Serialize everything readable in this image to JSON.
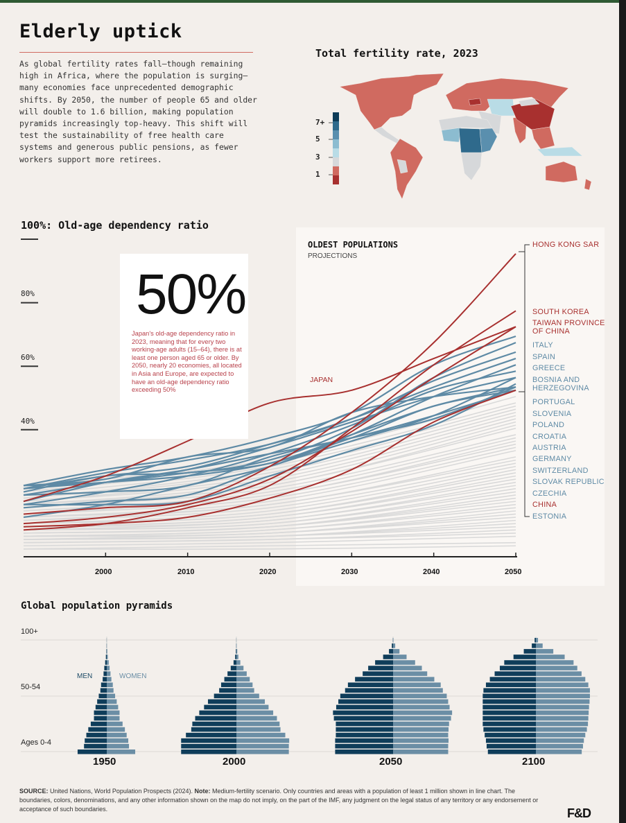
{
  "header": {
    "title": "Elderly uptick",
    "intro": "As global fertility rates fall—though remaining high in Africa, where the population is surging—many economies face unprecedented demographic shifts. By 2050, the number of people 65 and older will double to 1.6 billion, making population pyramids increasingly top-heavy. This shift will test the sustainability of free health care systems and generous public pensions, as fewer workers support more retirees."
  },
  "colors": {
    "background": "#f3efeb",
    "red_line": "#a8302f",
    "blue_line": "#5e8aa5",
    "gray_line": "#d9d9d9",
    "men": "#0f3d5a",
    "women": "#6b8ea5",
    "accent_rule": "#d06a60"
  },
  "chart_data": [
    {
      "type": "choropleth-map",
      "title": "Total fertility rate, 2023",
      "legend": {
        "labels": [
          "7+",
          "5",
          "3",
          "1"
        ],
        "colors": [
          "#0d3b57",
          "#2f6a8c",
          "#5a8fae",
          "#8cbcd0",
          "#b9dce6",
          "#d6d8da",
          "#d06a60",
          "#a8302f"
        ]
      },
      "regions": [
        {
          "region": "North America",
          "color": "#d06a60"
        },
        {
          "region": "Central America & Caribbean",
          "color": "#d6d8da"
        },
        {
          "region": "South America",
          "color": "#d06a60"
        },
        {
          "region": "Bolivia/Paraguay",
          "color": "#d6d8da"
        },
        {
          "region": "Europe & Russia",
          "color": "#d06a60"
        },
        {
          "region": "Ukraine",
          "color": "#a8302f"
        },
        {
          "region": "Central Asia",
          "color": "#b9dce6"
        },
        {
          "region": "Middle East",
          "color": "#d6d8da"
        },
        {
          "region": "North Africa",
          "color": "#d6d8da"
        },
        {
          "region": "West Africa",
          "color": "#8cbcd0"
        },
        {
          "region": "Central Africa",
          "color": "#2f6a8c"
        },
        {
          "region": "East Africa",
          "color": "#5a8fae"
        },
        {
          "region": "Southern Africa",
          "color": "#d6d8da"
        },
        {
          "region": "India",
          "color": "#d06a60"
        },
        {
          "region": "China",
          "color": "#a8302f"
        },
        {
          "region": "Mongolia",
          "color": "#d6d8da"
        },
        {
          "region": "Southeast Asia",
          "color": "#d06a60"
        },
        {
          "region": "Indonesia/PNG",
          "color": "#b9dce6"
        },
        {
          "region": "Australia",
          "color": "#d06a60"
        },
        {
          "region": "New Zealand",
          "color": "#d06a60"
        }
      ]
    },
    {
      "type": "line",
      "title": "100%: Old-age dependency ratio",
      "panel_title": "OLDEST POPULATIONS",
      "panel_subtitle": "PROJECTIONS",
      "xlim": [
        1990,
        2050
      ],
      "ylim": [
        0,
        100
      ],
      "x_ticks": [
        "2000",
        "2010",
        "2020",
        "2030",
        "2040",
        "2050"
      ],
      "y_ticks": [
        "80%",
        "60%",
        "40%"
      ],
      "x": [
        1990,
        2000,
        2010,
        2020,
        2030,
        2040,
        2050
      ],
      "annotation_label": "JAPAN",
      "callout": {
        "value": "50%",
        "text": "Japan's old-age dependency ratio in 2023, meaning that for every two working-age adults (15–64), there is at least one person aged 65 or older. By 2050, nearly 20 economies, all located in Asia and Europe, are expected to have an old-age dependency ratio exceeding 50%"
      },
      "highlighted_series": [
        {
          "name": "HONG KONG SAR",
          "group": "red",
          "values": [
            13,
            15,
            17,
            28,
            45,
            67,
            95
          ]
        },
        {
          "name": "SOUTH KOREA",
          "group": "red",
          "values": [
            8,
            10,
            15,
            22,
            40,
            60,
            77
          ]
        },
        {
          "name": "TAIWAN PROVINCE OF CHINA",
          "group": "red",
          "values": [
            10,
            12,
            16,
            24,
            39,
            56,
            72
          ]
        },
        {
          "name": "ITALY",
          "group": "blue",
          "values": [
            22,
            27,
            31,
            37,
            45,
            60,
            69
          ]
        },
        {
          "name": "SPAIN",
          "group": "blue",
          "values": [
            20,
            25,
            26,
            30,
            40,
            56,
            67
          ]
        },
        {
          "name": "GREECE",
          "group": "blue",
          "values": [
            21,
            26,
            30,
            35,
            43,
            55,
            64
          ]
        },
        {
          "name": "BOSNIA AND HERZEGOVINA",
          "group": "blue",
          "values": [
            12,
            16,
            22,
            28,
            38,
            50,
            60
          ]
        },
        {
          "name": "PORTUGAL",
          "group": "blue",
          "values": [
            21,
            25,
            28,
            35,
            43,
            53,
            62
          ]
        },
        {
          "name": "SLOVENIA",
          "group": "blue",
          "values": [
            16,
            20,
            25,
            32,
            41,
            52,
            58
          ]
        },
        {
          "name": "POLAND",
          "group": "blue",
          "values": [
            15,
            17,
            19,
            28,
            36,
            44,
            56
          ]
        },
        {
          "name": "CROATIA",
          "group": "blue",
          "values": [
            19,
            23,
            27,
            34,
            42,
            50,
            56
          ]
        },
        {
          "name": "AUSTRIA",
          "group": "blue",
          "values": [
            22,
            23,
            26,
            29,
            38,
            47,
            53
          ]
        },
        {
          "name": "GERMANY",
          "group": "blue",
          "values": [
            22,
            24,
            31,
            34,
            45,
            50,
            53
          ]
        },
        {
          "name": "SWITZERLAND",
          "group": "blue",
          "values": [
            21,
            23,
            25,
            29,
            37,
            47,
            52
          ]
        },
        {
          "name": "SLOVAK REPUBLIC",
          "group": "blue",
          "values": [
            16,
            16,
            17,
            25,
            33,
            41,
            54
          ]
        },
        {
          "name": "CZECHIA",
          "group": "blue",
          "values": [
            19,
            20,
            22,
            31,
            37,
            43,
            53
          ]
        },
        {
          "name": "CHINA",
          "group": "red",
          "values": [
            9,
            10,
            12,
            18,
            27,
            42,
            52
          ]
        },
        {
          "name": "ESTONIA",
          "group": "blue",
          "values": [
            17,
            23,
            27,
            32,
            37,
            44,
            52
          ]
        },
        {
          "name": "JAPAN",
          "group": "red",
          "values": [
            17,
            25,
            36,
            48,
            52,
            62,
            72
          ]
        }
      ],
      "background_series_x": [
        1990,
        2020,
        2050
      ],
      "background_series": [
        [
          22,
          30,
          50
        ],
        [
          20,
          29,
          48
        ],
        [
          19,
          28,
          47
        ],
        [
          18,
          27,
          46
        ],
        [
          18,
          26,
          45
        ],
        [
          17,
          25,
          44
        ],
        [
          17,
          24,
          43
        ],
        [
          16,
          23,
          42
        ],
        [
          16,
          22,
          41
        ],
        [
          15,
          22,
          40
        ],
        [
          15,
          21,
          38
        ],
        [
          14,
          20,
          37
        ],
        [
          14,
          19,
          36
        ],
        [
          13,
          19,
          35
        ],
        [
          13,
          18,
          34
        ],
        [
          12,
          17,
          33
        ],
        [
          12,
          16,
          31
        ],
        [
          11,
          16,
          30
        ],
        [
          11,
          15,
          29
        ],
        [
          10,
          14,
          28
        ],
        [
          10,
          13,
          27
        ],
        [
          10,
          13,
          26
        ],
        [
          9,
          12,
          25
        ],
        [
          9,
          12,
          24
        ],
        [
          9,
          11,
          23
        ],
        [
          8,
          11,
          22
        ],
        [
          8,
          10,
          21
        ],
        [
          8,
          10,
          20
        ],
        [
          7,
          9,
          19
        ],
        [
          7,
          9,
          18
        ],
        [
          7,
          9,
          17
        ],
        [
          6,
          8,
          16
        ],
        [
          6,
          8,
          15
        ],
        [
          6,
          7,
          14
        ],
        [
          6,
          7,
          13
        ],
        [
          5,
          7,
          12
        ],
        [
          5,
          6,
          11
        ],
        [
          5,
          6,
          10
        ],
        [
          5,
          6,
          9
        ],
        [
          4,
          5,
          8
        ],
        [
          4,
          5,
          7
        ],
        [
          3,
          4,
          6
        ],
        [
          2,
          3,
          4
        ],
        [
          2,
          2,
          3
        ]
      ]
    },
    {
      "type": "population-pyramid",
      "title": "Global population pyramids",
      "age_labels": [
        "Ages 0-4",
        "50-54",
        "100+"
      ],
      "legend": [
        "MEN",
        "WOMEN"
      ],
      "age_groups": [
        "0-4",
        "5-9",
        "10-14",
        "15-19",
        "20-24",
        "25-29",
        "30-34",
        "35-39",
        "40-44",
        "45-49",
        "50-54",
        "55-59",
        "60-64",
        "65-69",
        "70-74",
        "75-79",
        "80-84",
        "85-89",
        "90-94",
        "95-99",
        "100+"
      ],
      "pyramids": [
        {
          "year": "1950",
          "men": [
            164,
            128,
            124,
            115,
            104,
            90,
            72,
            72,
            63,
            54,
            45,
            36,
            32,
            23,
            18,
            14,
            9,
            5,
            2,
            1,
            0.5
          ],
          "women": [
            160,
            125,
            121,
            112,
            102,
            89,
            72,
            72,
            64,
            56,
            47,
            38,
            34,
            26,
            21,
            16,
            11,
            6,
            3,
            1,
            0.5
          ]
        },
        {
          "year": "2000",
          "men": [
            311,
            311,
            311,
            284,
            254,
            248,
            232,
            209,
            182,
            160,
            126,
            97,
            86,
            68,
            50,
            32,
            16,
            7,
            3,
            1,
            0.5
          ],
          "women": [
            295,
            295,
            297,
            275,
            248,
            243,
            228,
            207,
            181,
            160,
            128,
            100,
            91,
            75,
            58,
            40,
            22,
            11,
            5,
            1.5,
            0.5
          ]
        },
        {
          "year": "2050",
          "men": [
            326,
            326,
            326,
            322,
            322,
            322,
            333,
            338,
            320,
            308,
            297,
            270,
            254,
            214,
            171,
            140,
            101,
            56,
            23,
            7,
            1
          ],
          "women": [
            310,
            310,
            312,
            310,
            312,
            315,
            326,
            332,
            318,
            310,
            302,
            280,
            268,
            232,
            192,
            162,
            124,
            76,
            36,
            12,
            2
          ]
        },
        {
          "year": "2100",
          "men": [
            270,
            277,
            281,
            288,
            295,
            299,
            299,
            299,
            299,
            299,
            299,
            295,
            281,
            259,
            232,
            203,
            178,
            126,
            68,
            23,
            7
          ],
          "women": [
            258,
            265,
            270,
            278,
            287,
            293,
            295,
            297,
            299,
            302,
            304,
            304,
            295,
            278,
            257,
            233,
            212,
            162,
            98,
            38,
            12
          ]
        }
      ]
    }
  ],
  "footer": {
    "source_label": "SOURCE:",
    "source_text": " United Nations, World Population Prospects (2024). ",
    "note_label": "Note:",
    "note_text": " Medium-fertility scenario. Only countries and areas with a population of least 1 million shown in line chart. The boundaries, colors, denominations, and any other information shown on the map do not imply, on the part of the IMF, any judgment on the legal status of any territory or any endorsement or acceptance of such boundaries.",
    "logo": "F&D"
  }
}
